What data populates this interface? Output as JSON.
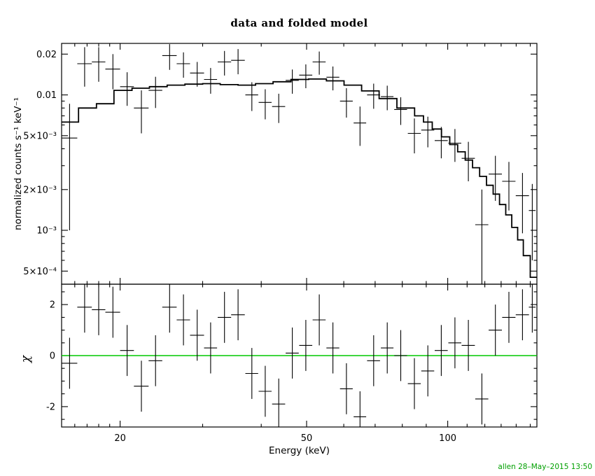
{
  "title": "data and folded model",
  "timestamp": "allen 28–May–2015 13:50",
  "colors": {
    "foreground": "#000000",
    "background": "#ffffff",
    "zero_line": "#00c800",
    "timestamp": "#00a000"
  },
  "chart_data": {
    "type": "scatter",
    "title": "data and folded model",
    "xlabel": "Energy (keV)",
    "x_scale": "log",
    "x_range": [
      15,
      155
    ],
    "x_ticks": [
      {
        "v": 20,
        "label": "20"
      },
      {
        "v": 50,
        "label": "50"
      },
      {
        "v": 100,
        "label": "100"
      }
    ],
    "x_minor_ticks": [
      16,
      17,
      18,
      19,
      30,
      40,
      60,
      70,
      80,
      90,
      110,
      120,
      130,
      140,
      150
    ],
    "panels": {
      "top": {
        "ylabel": "normalized counts s⁻¹ keV⁻¹",
        "y_scale": "log",
        "y_range": [
          0.0004,
          0.024
        ],
        "y_ticks": [
          {
            "v": 0.02,
            "label": "0.02"
          },
          {
            "v": 0.01,
            "label": "0.01"
          },
          {
            "v": 0.005,
            "label": "5×10⁻³"
          },
          {
            "v": 0.002,
            "label": "2×10⁻³"
          },
          {
            "v": 0.001,
            "label": "10⁻³"
          },
          {
            "v": 0.0005,
            "label": "5×10⁻⁴"
          }
        ],
        "y_minor_ticks": [
          0.0006,
          0.0007,
          0.0008,
          0.0009,
          0.003,
          0.004,
          0.006,
          0.007,
          0.008,
          0.009
        ],
        "model_steps": [
          [
            15,
            16.3,
            0.0063
          ],
          [
            16.3,
            17.8,
            0.008
          ],
          [
            17.8,
            19.4,
            0.0086
          ],
          [
            19.4,
            21.2,
            0.0108
          ],
          [
            21.2,
            23.1,
            0.0112
          ],
          [
            23.1,
            25.2,
            0.0115
          ],
          [
            25.2,
            27.5,
            0.0118
          ],
          [
            27.5,
            30.0,
            0.012
          ],
          [
            30.0,
            32.7,
            0.0121
          ],
          [
            32.7,
            35.7,
            0.0119
          ],
          [
            35.7,
            38.9,
            0.0118
          ],
          [
            38.9,
            42.4,
            0.0121
          ],
          [
            42.4,
            46.3,
            0.0125
          ],
          [
            46.3,
            50.5,
            0.013
          ],
          [
            50.5,
            55.1,
            0.0131
          ],
          [
            55.1,
            60.1,
            0.0127
          ],
          [
            60.1,
            65.5,
            0.0118
          ],
          [
            65.5,
            71.4,
            0.0107
          ],
          [
            71.4,
            77.9,
            0.0094
          ],
          [
            77.9,
            85.0,
            0.008
          ],
          [
            85.0,
            88.8,
            0.007
          ],
          [
            88.8,
            92.7,
            0.0063
          ],
          [
            92.7,
            97.0,
            0.0056
          ],
          [
            97.0,
            101.0,
            0.0049
          ],
          [
            101.0,
            105.0,
            0.0043
          ],
          [
            105.0,
            109.0,
            0.0038
          ],
          [
            109.0,
            113.0,
            0.0033
          ],
          [
            113.0,
            117.0,
            0.0029
          ],
          [
            117.0,
            121.0,
            0.0025
          ],
          [
            121.0,
            125.0,
            0.00215
          ],
          [
            125.0,
            129.0,
            0.00185
          ],
          [
            129.0,
            133.0,
            0.00155
          ],
          [
            133.0,
            137.0,
            0.0013
          ],
          [
            137.0,
            141.0,
            0.00105
          ],
          [
            141.0,
            145.0,
            0.00085
          ],
          [
            145.0,
            150.0,
            0.00065
          ],
          [
            150.0,
            155.0,
            0.00045
          ]
        ]
      },
      "bottom": {
        "ylabel": "χ",
        "y_scale": "linear",
        "y_range": [
          -2.8,
          2.8
        ],
        "y_ticks": [
          {
            "v": 2,
            "label": "2"
          },
          {
            "v": 0,
            "label": "0"
          },
          {
            "v": -2,
            "label": "-2"
          }
        ],
        "y_minor_ticks": [
          -2.5,
          -1.5,
          -1,
          -0.5,
          0.5,
          1,
          1.5,
          2.5
        ],
        "zero_line": 0,
        "chi_err": 1.0
      }
    },
    "points": [
      {
        "e": 15.6,
        "ew": 0.6,
        "v": 0.0048,
        "err": 0.0038,
        "chi": -0.3
      },
      {
        "e": 16.8,
        "ew": 0.6,
        "v": 0.017,
        "err": 0.0055,
        "chi": 1.9
      },
      {
        "e": 18.0,
        "ew": 0.6,
        "v": 0.0175,
        "err": 0.005,
        "chi": 1.8
      },
      {
        "e": 19.3,
        "ew": 0.7,
        "v": 0.0155,
        "err": 0.0045,
        "chi": 1.7
      },
      {
        "e": 20.7,
        "ew": 0.7,
        "v": 0.0115,
        "err": 0.0032,
        "chi": 0.2
      },
      {
        "e": 22.2,
        "ew": 0.8,
        "v": 0.008,
        "err": 0.0028,
        "chi": -1.2
      },
      {
        "e": 23.8,
        "ew": 0.8,
        "v": 0.0108,
        "err": 0.0028,
        "chi": -0.2
      },
      {
        "e": 25.5,
        "ew": 0.9,
        "v": 0.0195,
        "err": 0.0042,
        "chi": 1.9
      },
      {
        "e": 27.3,
        "ew": 0.9,
        "v": 0.017,
        "err": 0.0036,
        "chi": 1.4
      },
      {
        "e": 29.2,
        "ew": 1.0,
        "v": 0.0145,
        "err": 0.003,
        "chi": 0.8
      },
      {
        "e": 31.2,
        "ew": 1.0,
        "v": 0.013,
        "err": 0.0028,
        "chi": 0.3
      },
      {
        "e": 33.4,
        "ew": 1.1,
        "v": 0.0175,
        "err": 0.0036,
        "chi": 1.5
      },
      {
        "e": 35.7,
        "ew": 1.2,
        "v": 0.018,
        "err": 0.0038,
        "chi": 1.6
      },
      {
        "e": 38.2,
        "ew": 1.2,
        "v": 0.01,
        "err": 0.0024,
        "chi": -0.7
      },
      {
        "e": 40.8,
        "ew": 1.3,
        "v": 0.0088,
        "err": 0.0022,
        "chi": -1.4
      },
      {
        "e": 43.6,
        "ew": 1.4,
        "v": 0.0082,
        "err": 0.002,
        "chi": -1.9
      },
      {
        "e": 46.6,
        "ew": 1.5,
        "v": 0.0128,
        "err": 0.0026,
        "chi": 0.1
      },
      {
        "e": 49.8,
        "ew": 1.6,
        "v": 0.014,
        "err": 0.0028,
        "chi": 0.4
      },
      {
        "e": 53.2,
        "ew": 1.7,
        "v": 0.0175,
        "err": 0.0034,
        "chi": 1.4
      },
      {
        "e": 56.9,
        "ew": 1.8,
        "v": 0.0135,
        "err": 0.0027,
        "chi": 0.3
      },
      {
        "e": 60.8,
        "ew": 1.9,
        "v": 0.009,
        "err": 0.0022,
        "chi": -1.3
      },
      {
        "e": 65.0,
        "ew": 2.0,
        "v": 0.0062,
        "err": 0.002,
        "chi": -2.4
      },
      {
        "e": 69.5,
        "ew": 2.2,
        "v": 0.01,
        "err": 0.0021,
        "chi": -0.2
      },
      {
        "e": 74.3,
        "ew": 2.3,
        "v": 0.0097,
        "err": 0.002,
        "chi": 0.3
      },
      {
        "e": 79.4,
        "ew": 2.5,
        "v": 0.0078,
        "err": 0.0018,
        "chi": 0.0
      },
      {
        "e": 84.9,
        "ew": 2.7,
        "v": 0.0052,
        "err": 0.0015,
        "chi": -1.1
      },
      {
        "e": 90.7,
        "ew": 2.9,
        "v": 0.0055,
        "err": 0.0014,
        "chi": -0.6
      },
      {
        "e": 96.9,
        "ew": 3.1,
        "v": 0.0046,
        "err": 0.0012,
        "chi": 0.2
      },
      {
        "e": 103.6,
        "ew": 3.3,
        "v": 0.0044,
        "err": 0.0012,
        "chi": 0.5
      },
      {
        "e": 110.7,
        "ew": 3.6,
        "v": 0.0034,
        "err": 0.0011,
        "chi": 0.4
      },
      {
        "e": 118.3,
        "ew": 3.8,
        "v": 0.0011,
        "err": 0.0009,
        "chi": -1.7
      },
      {
        "e": 126.4,
        "ew": 4.1,
        "v": 0.0026,
        "err": 0.00095,
        "chi": 1.0
      },
      {
        "e": 135.1,
        "ew": 4.4,
        "v": 0.0023,
        "err": 0.0009,
        "chi": 1.5
      },
      {
        "e": 144.4,
        "ew": 4.7,
        "v": 0.0018,
        "err": 0.00085,
        "chi": 1.6
      },
      {
        "e": 151.5,
        "ew": 2.5,
        "v": 0.0014,
        "err": 0.0008,
        "chi": 1.9
      }
    ]
  }
}
